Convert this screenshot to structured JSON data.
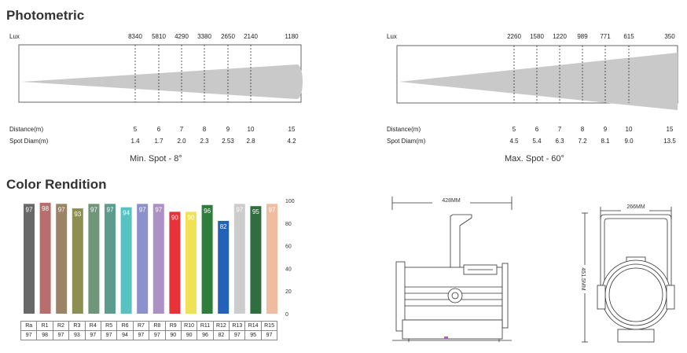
{
  "sections": {
    "photometric_title": "Photometric",
    "color_title": "Color Rendition"
  },
  "photometric": {
    "lux_label": "Lux",
    "distance_label": "Distance(m)",
    "diam_label": "Spot Diam(m)",
    "left": {
      "caption": "Min. Spot - 8°",
      "lux": [
        "8340",
        "5810",
        "4290",
        "3380",
        "2650",
        "2140",
        "1180"
      ],
      "distance": [
        "5",
        "6",
        "7",
        "8",
        "9",
        "10",
        "15"
      ],
      "diam": [
        "1.4",
        "1.7",
        "2.0",
        "2.3",
        "2.53",
        "2.8",
        "4.2"
      ]
    },
    "right": {
      "caption": "Max. Spot - 60°",
      "lux": [
        "2260",
        "1580",
        "1220",
        "989",
        "771",
        "615",
        "350"
      ],
      "distance": [
        "5",
        "6",
        "7",
        "8",
        "9",
        "10",
        "15"
      ],
      "diam": [
        "4.5",
        "5.4",
        "6.3",
        "7.2",
        "8.1",
        "9.0",
        "13.5"
      ]
    }
  },
  "chart_data": {
    "type": "bar",
    "title": "Color Rendition",
    "categories": [
      "Ra",
      "R1",
      "R2",
      "R3",
      "R4",
      "R5",
      "R6",
      "R7",
      "R8",
      "R9",
      "R10",
      "R11",
      "R12",
      "R13",
      "R14",
      "R15"
    ],
    "values": [
      97,
      98,
      97,
      93,
      97,
      97,
      94,
      97,
      97,
      90,
      90,
      96,
      82,
      97,
      95,
      97
    ],
    "colors": [
      "#686868",
      "#b96e6e",
      "#9a8465",
      "#8d8e52",
      "#6f9678",
      "#5b9c8c",
      "#56c2c2",
      "#8c90cc",
      "#ad90c6",
      "#e8323a",
      "#f0e155",
      "#2f7d3c",
      "#2262b8",
      "#cccccc",
      "#2f6f3d",
      "#f0bca0"
    ],
    "yticks": [
      "100",
      "80",
      "60",
      "40",
      "20",
      "0"
    ],
    "ylim": [
      0,
      100
    ]
  },
  "dimensions": {
    "width_front": "428MM",
    "width_side": "266MM",
    "height": "451.5MM"
  }
}
